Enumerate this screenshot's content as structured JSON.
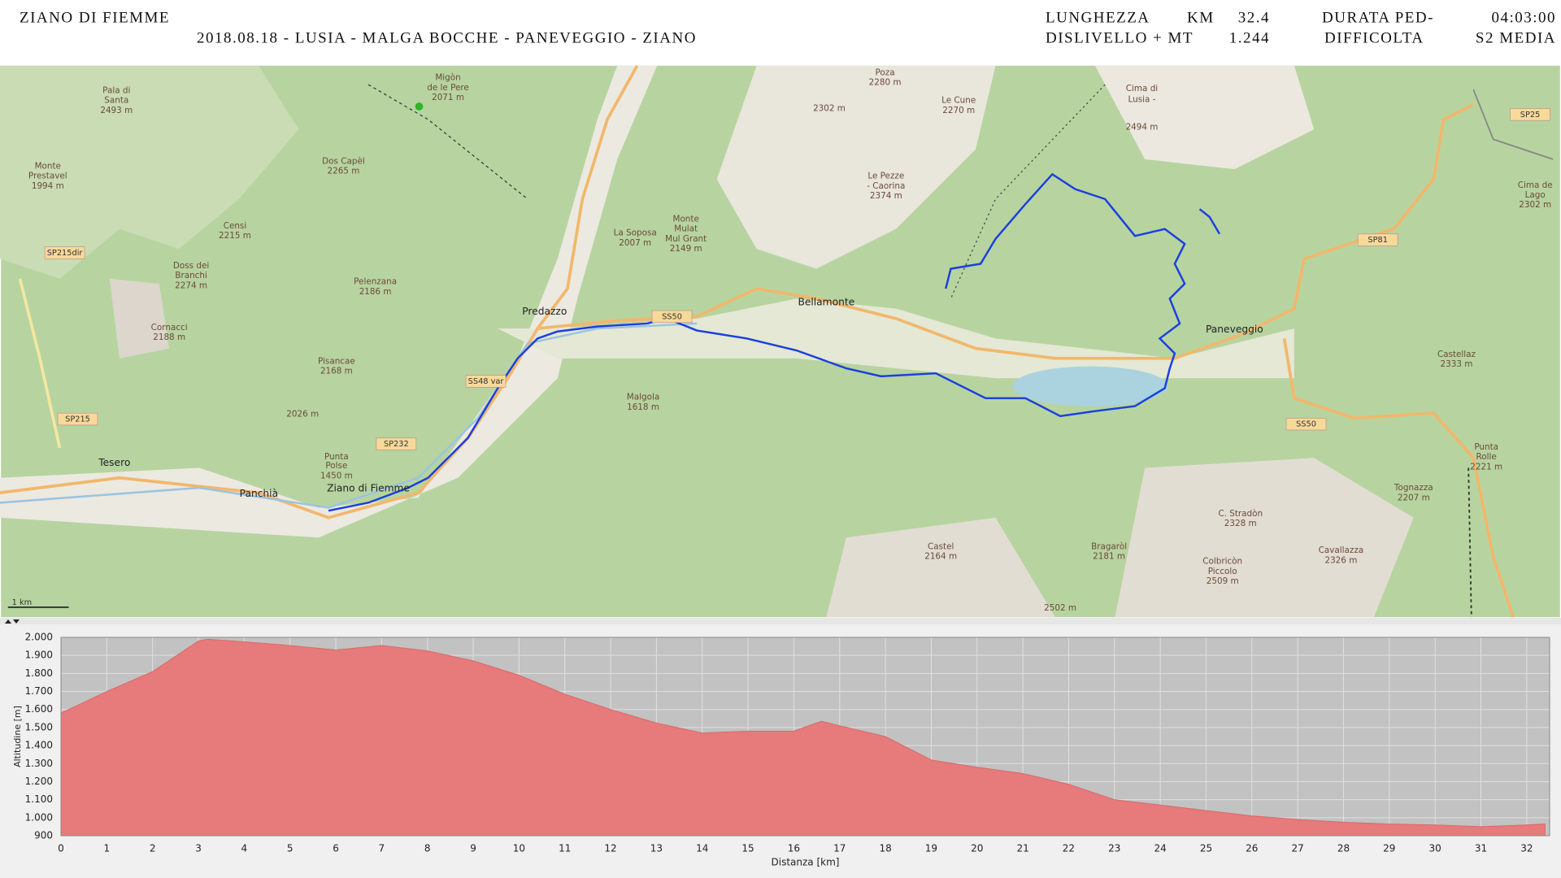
{
  "header": {
    "title": "ZIANO DI FIEMME",
    "route": "2018.08.18 - LUSIA - MALGA BOCCHE - PANEVEGGIO - ZIANO",
    "length_label": "LUNGHEZZA",
    "length_unit": "KM",
    "length_value": "32.4",
    "duration_label": "DURATA PED-",
    "duration_value": "04:03:00",
    "climb_label": "DISLIVELLO + MT",
    "climb_value": "1.244",
    "difficulty_label": "DIFFICOLTA",
    "difficulty_value": "S2 MEDIA"
  },
  "map": {
    "labels": [
      "Predazzo",
      "Paneveggio",
      "Bellamonte",
      "Ziano di Fiemme",
      "Tesero",
      "Panchià",
      "Malgola",
      "1618 m",
      "Pala di",
      "Santa",
      "2493 m",
      "Monte",
      "Prestavel",
      "1994 m",
      "Dos Capèl",
      "2265 m",
      "Migòn",
      "de le Pere",
      "2071 m",
      "Censi",
      "2215 m",
      "Doss dei",
      "Branchi",
      "2274 m",
      "Cornacci",
      "2188 m",
      "Pelenzana",
      "2186 m",
      "Pisancae",
      "2168 m",
      "Punta",
      "Polse",
      "1450 m",
      "La Soposa",
      "2007 m",
      "Monte",
      "Mulat",
      "Mul Grant",
      "2149 m",
      "Poza",
      "2280 m",
      "2302 m",
      "Le Cune",
      "2270 m",
      "Le Pezze",
      "- Caorina",
      "2374 m",
      "Castellaz",
      "2333 m",
      "Punta",
      "Rolle",
      "2221 m",
      "Tognazza",
      "2207 m",
      "C. Stradòn",
      "2328 m",
      "Colbricòn",
      "Piccolo",
      "2509 m",
      "Cavallazza",
      "2326 m",
      "Castel",
      "2164 m",
      "Bragaròl",
      "2181 m",
      "2502 m",
      "Cima de",
      "Lago",
      "2302 m",
      "2026 m",
      "Cima di",
      "Lusia -",
      "2494 m"
    ],
    "roads": [
      "SS50",
      "SS48 var",
      "SP232",
      "SP215",
      "SP215dir",
      "SP81",
      "SP25",
      "SS50"
    ],
    "scale": "1 km"
  },
  "chart_data": {
    "type": "area",
    "xlabel": "Distanza [km]",
    "ylabel": "Altitudine [m]",
    "color": "#e77a7b",
    "x": [
      0,
      1,
      2,
      3,
      3.2,
      4,
      5,
      6,
      7,
      8,
      9,
      10,
      11,
      12,
      13,
      14,
      15,
      16,
      16.6,
      17,
      18,
      19,
      20,
      21,
      22,
      23,
      24,
      25,
      26,
      27,
      28,
      29,
      30,
      31,
      32,
      32.4
    ],
    "values": [
      1580,
      1700,
      1810,
      1980,
      1990,
      1975,
      1955,
      1930,
      1955,
      1925,
      1870,
      1790,
      1685,
      1600,
      1525,
      1470,
      1480,
      1480,
      1535,
      1510,
      1450,
      1320,
      1280,
      1245,
      1185,
      1100,
      1070,
      1040,
      1010,
      990,
      975,
      965,
      960,
      950,
      960,
      965
    ],
    "xlim": [
      0,
      32.5
    ],
    "ylim": [
      900,
      2000
    ],
    "xticks": [
      0,
      1,
      2,
      3,
      4,
      5,
      6,
      7,
      8,
      9,
      10,
      11,
      12,
      13,
      14,
      15,
      16,
      17,
      18,
      19,
      20,
      21,
      22,
      23,
      24,
      25,
      26,
      27,
      28,
      29,
      30,
      31,
      32
    ],
    "yticks": [
      {
        "value": 900,
        "label": "900"
      },
      {
        "value": 1000,
        "label": "1.000"
      },
      {
        "value": 1100,
        "label": "1.100"
      },
      {
        "value": 1200,
        "label": "1.200"
      },
      {
        "value": 1300,
        "label": "1.300"
      },
      {
        "value": 1400,
        "label": "1.400"
      },
      {
        "value": 1500,
        "label": "1.500"
      },
      {
        "value": 1600,
        "label": "1.600"
      },
      {
        "value": 1700,
        "label": "1.700"
      },
      {
        "value": 1800,
        "label": "1.800"
      },
      {
        "value": 1900,
        "label": "1.900"
      },
      {
        "value": 2000,
        "label": "2.000"
      }
    ],
    "grid": true
  }
}
